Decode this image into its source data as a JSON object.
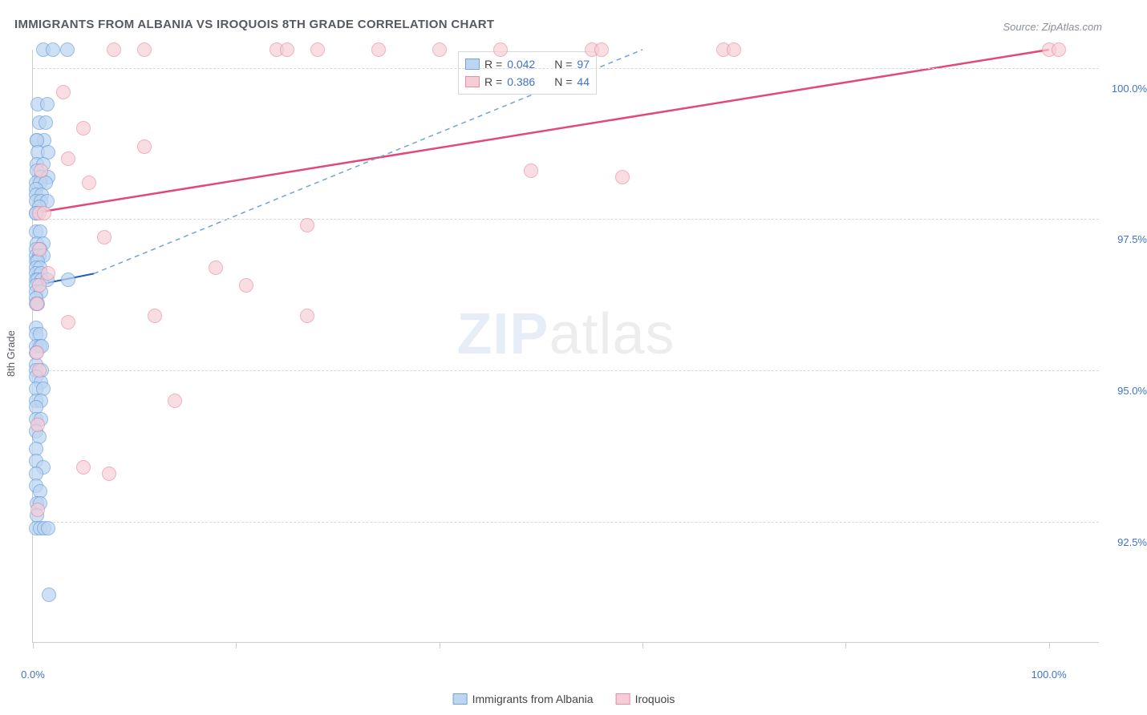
{
  "title": "IMMIGRANTS FROM ALBANIA VS IROQUOIS 8TH GRADE CORRELATION CHART",
  "source": "Source: ZipAtlas.com",
  "watermark_zip": "ZIP",
  "watermark_atlas": "atlas",
  "y_axis": {
    "label": "8th Grade",
    "min": 90.5,
    "max": 100.3,
    "ticks": [
      {
        "value": 92.5,
        "label": "92.5%"
      },
      {
        "value": 95.0,
        "label": "95.0%"
      },
      {
        "value": 97.5,
        "label": "97.5%"
      },
      {
        "value": 100.0,
        "label": "100.0%"
      }
    ],
    "grid_color": "#d6d8db"
  },
  "x_axis": {
    "min": 0.0,
    "max": 105.0,
    "ticks": [
      0,
      20,
      40,
      60,
      80,
      100
    ],
    "label_min": "0.0%",
    "label_max": "100.0%"
  },
  "series": {
    "albania": {
      "label": "Immigrants from Albania",
      "fill": "#bcd5f0",
      "stroke": "#6ea3de",
      "opacity": 0.72,
      "R": "0.042",
      "N": "97",
      "trend": {
        "x1": 0,
        "y1": 96.4,
        "x2": 6,
        "y2": 96.6,
        "color": "#1f5fb0",
        "width": 2,
        "dash": ""
      },
      "trend_ext": {
        "x1": 6,
        "y1": 96.6,
        "x2": 60,
        "y2": 100.3,
        "color": "#6ea3de",
        "width": 1.5,
        "dash": "6 5"
      },
      "points": [
        [
          1.0,
          100.3
        ],
        [
          2.0,
          100.3
        ],
        [
          3.4,
          100.3
        ],
        [
          0.5,
          99.4
        ],
        [
          1.4,
          99.4
        ],
        [
          0.6,
          99.1
        ],
        [
          1.3,
          99.1
        ],
        [
          0.4,
          98.8
        ],
        [
          1.1,
          98.8
        ],
        [
          0.4,
          98.8
        ],
        [
          0.5,
          98.6
        ],
        [
          1.5,
          98.6
        ],
        [
          0.4,
          98.4
        ],
        [
          1.0,
          98.4
        ],
        [
          0.4,
          98.3
        ],
        [
          0.8,
          98.2
        ],
        [
          1.5,
          98.2
        ],
        [
          0.3,
          98.1
        ],
        [
          0.7,
          98.1
        ],
        [
          1.3,
          98.1
        ],
        [
          0.3,
          98.0
        ],
        [
          0.3,
          97.9
        ],
        [
          0.9,
          97.9
        ],
        [
          0.3,
          97.8
        ],
        [
          0.8,
          97.8
        ],
        [
          1.4,
          97.8
        ],
        [
          0.6,
          97.7
        ],
        [
          0.3,
          97.6
        ],
        [
          0.3,
          97.6
        ],
        [
          0.3,
          97.3
        ],
        [
          0.7,
          97.3
        ],
        [
          0.4,
          97.1
        ],
        [
          1.0,
          97.1
        ],
        [
          0.3,
          97.0
        ],
        [
          0.7,
          97.0
        ],
        [
          0.3,
          96.9
        ],
        [
          0.6,
          96.9
        ],
        [
          1.0,
          96.9
        ],
        [
          0.3,
          96.8
        ],
        [
          0.5,
          96.8
        ],
        [
          0.3,
          96.7
        ],
        [
          0.7,
          96.7
        ],
        [
          0.3,
          96.6
        ],
        [
          0.8,
          96.6
        ],
        [
          0.3,
          96.5
        ],
        [
          0.5,
          96.5
        ],
        [
          0.9,
          96.5
        ],
        [
          1.4,
          96.5
        ],
        [
          3.5,
          96.5
        ],
        [
          0.3,
          96.4
        ],
        [
          0.3,
          96.3
        ],
        [
          0.8,
          96.3
        ],
        [
          0.3,
          96.2
        ],
        [
          0.3,
          96.1
        ],
        [
          0.5,
          96.1
        ],
        [
          0.3,
          95.7
        ],
        [
          0.3,
          95.6
        ],
        [
          0.7,
          95.6
        ],
        [
          0.3,
          95.4
        ],
        [
          0.7,
          95.4
        ],
        [
          0.9,
          95.4
        ],
        [
          0.3,
          95.3
        ],
        [
          0.3,
          95.1
        ],
        [
          0.3,
          95.0
        ],
        [
          0.9,
          95.0
        ],
        [
          0.3,
          94.9
        ],
        [
          0.8,
          94.8
        ],
        [
          0.3,
          94.7
        ],
        [
          1.0,
          94.7
        ],
        [
          0.3,
          94.5
        ],
        [
          0.8,
          94.5
        ],
        [
          0.3,
          94.4
        ],
        [
          0.3,
          94.2
        ],
        [
          0.8,
          94.2
        ],
        [
          0.3,
          94.0
        ],
        [
          0.6,
          93.9
        ],
        [
          0.3,
          93.7
        ],
        [
          0.3,
          93.5
        ],
        [
          1.0,
          93.4
        ],
        [
          0.3,
          93.3
        ],
        [
          0.3,
          93.1
        ],
        [
          0.7,
          93.0
        ],
        [
          0.4,
          92.8
        ],
        [
          0.7,
          92.8
        ],
        [
          0.4,
          92.6
        ],
        [
          0.3,
          92.4
        ],
        [
          0.7,
          92.4
        ],
        [
          1.1,
          92.4
        ],
        [
          1.5,
          92.4
        ],
        [
          1.6,
          91.3
        ]
      ]
    },
    "iroquois": {
      "label": "Iroquois",
      "fill": "#f6cdd7",
      "stroke": "#e98da4",
      "opacity": 0.68,
      "R": "0.386",
      "N": "44",
      "trend": {
        "x1": 0,
        "y1": 97.6,
        "x2": 100,
        "y2": 100.3,
        "color": "#e3487a",
        "width": 2.5,
        "dash": ""
      },
      "points": [
        [
          8.0,
          100.3
        ],
        [
          11.0,
          100.3
        ],
        [
          24.0,
          100.3
        ],
        [
          25.0,
          100.3
        ],
        [
          28.0,
          100.3
        ],
        [
          34.0,
          100.3
        ],
        [
          40.0,
          100.3
        ],
        [
          46.0,
          100.3
        ],
        [
          55.0,
          100.3
        ],
        [
          56.0,
          100.3
        ],
        [
          68.0,
          100.3
        ],
        [
          69.0,
          100.3
        ],
        [
          100.0,
          100.3
        ],
        [
          101.0,
          100.3
        ],
        [
          3.0,
          99.6
        ],
        [
          5.0,
          99.0
        ],
        [
          11.0,
          98.7
        ],
        [
          3.5,
          98.5
        ],
        [
          0.8,
          98.3
        ],
        [
          49.0,
          98.3
        ],
        [
          58.0,
          98.2
        ],
        [
          5.5,
          98.1
        ],
        [
          0.6,
          97.6
        ],
        [
          1.1,
          97.6
        ],
        [
          27.0,
          97.4
        ],
        [
          7.0,
          97.2
        ],
        [
          0.6,
          97.0
        ],
        [
          18.0,
          96.7
        ],
        [
          1.5,
          96.6
        ],
        [
          0.6,
          96.4
        ],
        [
          21.0,
          96.4
        ],
        [
          0.4,
          96.1
        ],
        [
          12.0,
          95.9
        ],
        [
          27.0,
          95.9
        ],
        [
          3.5,
          95.8
        ],
        [
          0.4,
          95.3
        ],
        [
          0.6,
          95.0
        ],
        [
          14.0,
          94.5
        ],
        [
          0.5,
          94.1
        ],
        [
          5.0,
          93.4
        ],
        [
          7.5,
          93.3
        ],
        [
          0.5,
          92.7
        ]
      ]
    }
  },
  "legend_stats": {
    "R_label": "R =",
    "N_label": "N ="
  }
}
